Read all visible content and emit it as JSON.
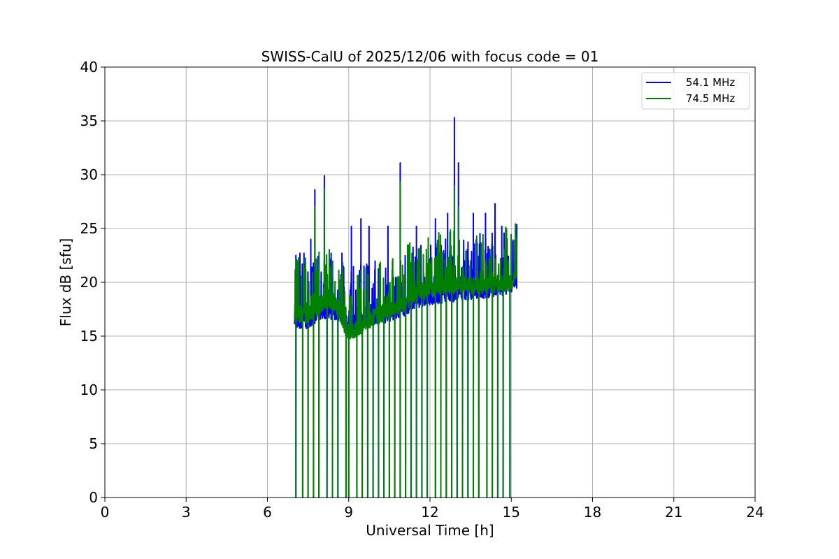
{
  "chart_data": {
    "type": "line",
    "title": "SWISS-CalU of 2025/12/06 with focus code = 01",
    "xlabel": "Universal Time [h]",
    "ylabel": "Flux dB [sfu]",
    "xlim": [
      0,
      24
    ],
    "ylim": [
      0,
      40
    ],
    "xticks": [
      0,
      3,
      6,
      9,
      12,
      15,
      18,
      21,
      24
    ],
    "yticks": [
      0,
      5,
      10,
      15,
      20,
      25,
      30,
      35,
      40
    ],
    "grid": true,
    "legend_position": "top-right",
    "series": [
      {
        "name": "54.1 MHz",
        "color": "#0000ff",
        "baseline": [
          [
            7.0,
            16.5
          ],
          [
            7.5,
            16.4
          ],
          [
            8.0,
            17.4
          ],
          [
            8.5,
            17.3
          ],
          [
            9.0,
            16.0
          ],
          [
            9.5,
            16.5
          ],
          [
            10.0,
            16.8
          ],
          [
            10.5,
            17.1
          ],
          [
            11.0,
            17.6
          ],
          [
            11.5,
            18.4
          ],
          [
            12.0,
            18.6
          ],
          [
            12.5,
            18.9
          ],
          [
            13.0,
            19.0
          ],
          [
            13.5,
            19.2
          ],
          [
            14.0,
            19.3
          ],
          [
            14.5,
            19.5
          ],
          [
            15.0,
            19.8
          ],
          [
            15.2,
            20.2
          ]
        ],
        "spikes": [
          [
            7.05,
            22.5
          ],
          [
            7.2,
            22.7
          ],
          [
            7.35,
            22.7
          ],
          [
            7.6,
            24.0
          ],
          [
            7.75,
            28.6
          ],
          [
            8.1,
            29.9
          ],
          [
            8.35,
            22.7
          ],
          [
            8.75,
            22.7
          ],
          [
            9.1,
            25.2
          ],
          [
            9.45,
            25.9
          ],
          [
            9.75,
            25.2
          ],
          [
            10.45,
            25.2
          ],
          [
            10.9,
            31.1
          ],
          [
            11.5,
            25.2
          ],
          [
            12.2,
            25.9
          ],
          [
            12.65,
            26.4
          ],
          [
            12.9,
            35.3
          ],
          [
            13.05,
            31.1
          ],
          [
            13.6,
            26.4
          ],
          [
            14.05,
            26.4
          ],
          [
            14.4,
            27.3
          ],
          [
            14.65,
            25.2
          ]
        ],
        "dropouts": [
          7.05,
          7.3,
          7.5,
          7.7,
          7.9,
          8.2,
          8.4,
          8.6,
          8.9,
          9.0,
          9.3,
          9.5,
          9.7,
          9.9,
          10.1,
          10.3,
          10.5,
          10.7,
          10.9,
          11.1,
          11.3,
          11.5,
          11.7,
          11.9,
          12.2,
          12.4,
          12.6,
          12.8,
          13.0,
          13.2,
          13.4,
          13.6,
          13.8,
          14.1,
          14.3,
          14.5,
          14.7,
          14.95
        ]
      },
      {
        "name": "74.5 MHz",
        "color": "#008000",
        "baseline": [
          [
            7.0,
            17.0
          ],
          [
            7.5,
            17.0
          ],
          [
            8.0,
            18.0
          ],
          [
            8.5,
            18.2
          ],
          [
            9.0,
            15.2
          ],
          [
            9.5,
            16.0
          ],
          [
            10.0,
            16.9
          ],
          [
            10.5,
            17.4
          ],
          [
            11.0,
            18.0
          ],
          [
            11.5,
            19.0
          ],
          [
            12.0,
            19.3
          ],
          [
            12.5,
            19.6
          ],
          [
            13.0,
            19.8
          ],
          [
            13.5,
            19.7
          ],
          [
            14.0,
            19.6
          ],
          [
            14.5,
            19.8
          ],
          [
            15.0,
            20.0
          ],
          [
            15.2,
            20.5
          ]
        ],
        "spikes": [
          [
            7.05,
            21.5
          ],
          [
            7.75,
            27.0
          ],
          [
            8.1,
            28.7
          ],
          [
            10.9,
            29.3
          ],
          [
            12.9,
            28.9
          ],
          [
            13.05,
            27.0
          ],
          [
            15.15,
            24.9
          ]
        ],
        "dropouts": [
          7.05,
          7.3,
          7.5,
          7.7,
          7.9,
          8.2,
          8.4,
          8.6,
          8.9,
          9.0,
          9.3,
          9.5,
          9.7,
          9.9,
          10.1,
          10.3,
          10.5,
          10.7,
          10.9,
          11.1,
          11.3,
          11.5,
          11.7,
          11.9,
          12.2,
          12.4,
          12.6,
          12.8,
          13.0,
          13.2,
          13.4,
          13.6,
          13.8,
          14.1,
          14.3,
          14.5,
          14.7,
          14.95
        ]
      }
    ]
  }
}
